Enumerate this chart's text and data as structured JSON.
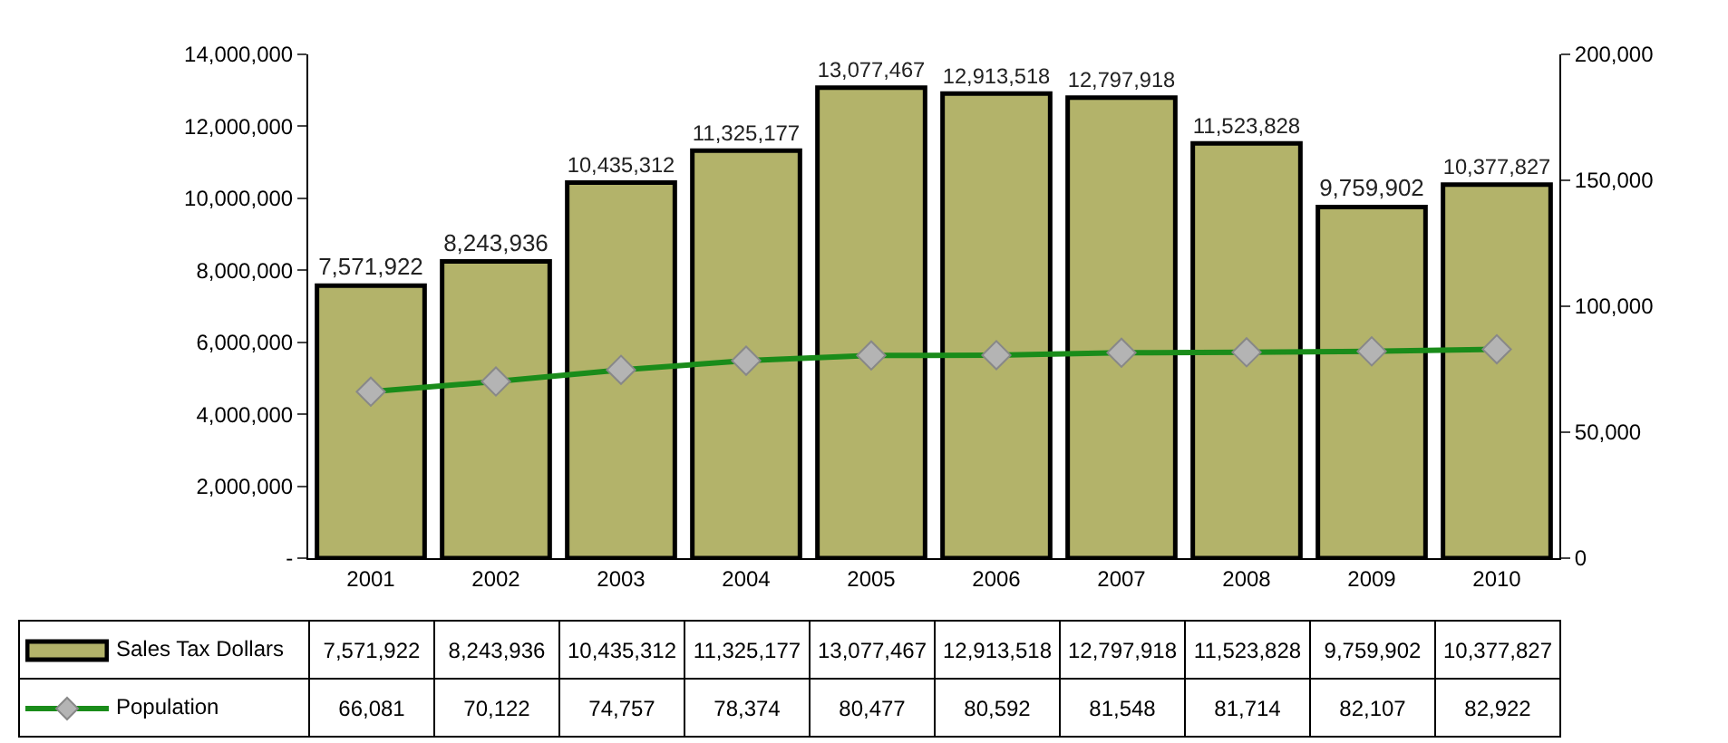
{
  "chart_data": {
    "type": "bar",
    "categories": [
      "2001",
      "2002",
      "2003",
      "2004",
      "2005",
      "2006",
      "2007",
      "2008",
      "2009",
      "2010"
    ],
    "series": [
      {
        "name": "Sales Tax Dollars",
        "color": "#b3b36a",
        "values": [
          7571922,
          8243936,
          10435312,
          11325177,
          13077467,
          12913518,
          12797918,
          11523828,
          9759902,
          10377827
        ],
        "value_labels": [
          "7,571,922",
          "8,243,936",
          "10,435,312",
          "11,325,177",
          "13,077,467",
          "12,913,518",
          "12,797,918",
          "11,523,828",
          "9,759,902",
          "10,377,827"
        ]
      },
      {
        "name": "Population",
        "type": "line",
        "axis": "y2",
        "color": "#1a8c1a",
        "marker": "diamond",
        "line_style": "solid",
        "values": [
          66081,
          70122,
          74757,
          78374,
          80477,
          80592,
          81548,
          81714,
          82107,
          82922
        ],
        "value_labels": [
          "66,081",
          "70,122",
          "74,757",
          "78,374",
          "80,477",
          "80,592",
          "81,548",
          "81,714",
          "82,107",
          "82,922"
        ]
      }
    ],
    "ylim": [
      0,
      14000000
    ],
    "yticks": [
      {
        "value": 0,
        "label": "-"
      },
      {
        "value": 2000000,
        "label": "2,000,000"
      },
      {
        "value": 4000000,
        "label": "4,000,000"
      },
      {
        "value": 6000000,
        "label": "6,000,000"
      },
      {
        "value": 8000000,
        "label": "8,000,000"
      },
      {
        "value": 10000000,
        "label": "10,000,000"
      },
      {
        "value": 12000000,
        "label": "12,000,000"
      },
      {
        "value": 14000000,
        "label": "14,000,000"
      }
    ],
    "y2lim": [
      0,
      200000
    ],
    "y2ticks": [
      0,
      {
        "value": 50000,
        "label": "50,000"
      },
      {
        "value": 100000,
        "label": "100,000"
      },
      {
        "value": 150000,
        "label": "150,000"
      },
      {
        "value": 200000,
        "label": "200,000"
      }
    ],
    "grid": false,
    "legend": "bottom"
  }
}
